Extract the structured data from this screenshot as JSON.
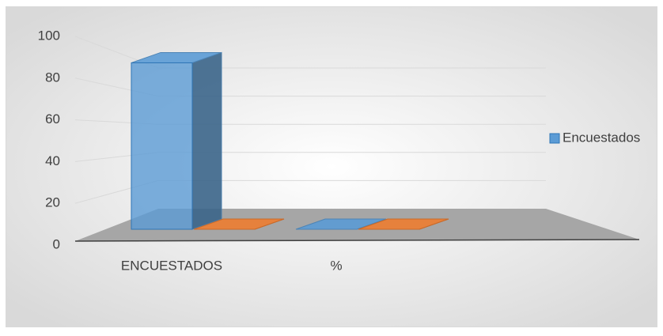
{
  "chart_data": {
    "type": "bar3d",
    "categories": [
      "ENCUESTADOS",
      "%"
    ],
    "series": [
      {
        "name": "Encuestados",
        "color": "#5b9bd5",
        "values": [
          87,
          0
        ]
      },
      {
        "color": "#ed7d31",
        "values": [
          0,
          0
        ]
      }
    ],
    "ylim": [
      0,
      100
    ],
    "yticks": [
      0,
      20,
      40,
      60,
      80,
      100
    ],
    "grid": true,
    "legend": "right"
  }
}
